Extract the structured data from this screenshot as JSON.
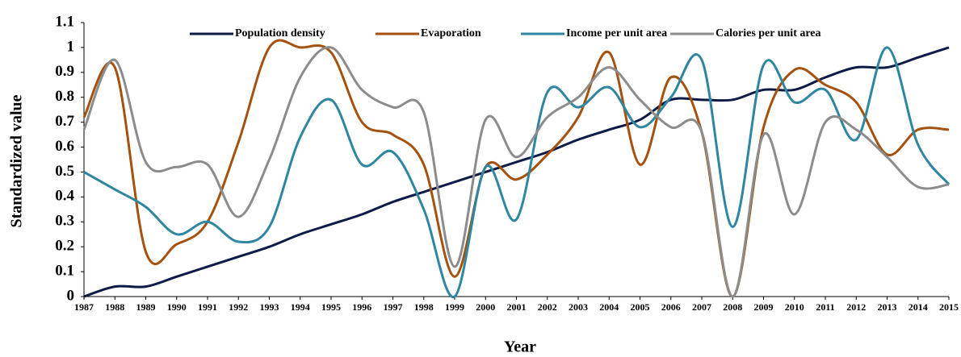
{
  "chart_data": {
    "type": "line",
    "x_label": "Year",
    "y_label": "Standardized value",
    "x": [
      1987,
      1988,
      1989,
      1990,
      1991,
      1992,
      1993,
      1994,
      1995,
      1996,
      1997,
      1998,
      1999,
      2000,
      2001,
      2002,
      2003,
      2004,
      2005,
      2006,
      2007,
      2008,
      2009,
      2010,
      2011,
      2012,
      2013,
      2014,
      2015
    ],
    "xlim": [
      1987,
      2015
    ],
    "ylim": [
      0,
      1.1
    ],
    "yticks": [
      0,
      0.1,
      0.2,
      0.3,
      0.4,
      0.5,
      0.6,
      0.7,
      0.8,
      0.9,
      1,
      1.1
    ],
    "series": [
      {
        "name": "Population density",
        "color": "#0d1b46",
        "values": [
          0,
          0.04,
          0.04,
          0.08,
          0.12,
          0.16,
          0.2,
          0.25,
          0.29,
          0.33,
          0.38,
          0.42,
          0.46,
          0.5,
          0.54,
          0.58,
          0.63,
          0.67,
          0.71,
          0.79,
          0.79,
          0.79,
          0.83,
          0.83,
          0.88,
          0.92,
          0.92,
          0.96,
          1.0
        ]
      },
      {
        "name": "Evaporation",
        "color": "#a5510f",
        "values": [
          0.72,
          0.92,
          0.18,
          0.21,
          0.3,
          0.62,
          1.0,
          1.0,
          0.98,
          0.7,
          0.65,
          0.53,
          0.08,
          0.52,
          0.47,
          0.57,
          0.72,
          0.98,
          0.53,
          0.88,
          0.66,
          0,
          0.68,
          0.91,
          0.85,
          0.78,
          0.57,
          0.67,
          0.67
        ]
      },
      {
        "name": "Income per unit area",
        "color": "#2e86a0",
        "values": [
          0.5,
          0.43,
          0.36,
          0.25,
          0.3,
          0.22,
          0.28,
          0.64,
          0.79,
          0.53,
          0.58,
          0.35,
          0,
          0.52,
          0.31,
          0.82,
          0.76,
          0.84,
          0.68,
          0.8,
          0.95,
          0.28,
          0.93,
          0.78,
          0.83,
          0.63,
          1.0,
          0.61,
          0.45
        ]
      },
      {
        "name": "Calories per unit area",
        "color": "#8c8c8c",
        "values": [
          0.67,
          0.95,
          0.54,
          0.52,
          0.53,
          0.32,
          0.55,
          0.88,
          1.0,
          0.83,
          0.76,
          0.74,
          0.12,
          0.71,
          0.56,
          0.72,
          0.8,
          0.92,
          0.79,
          0.68,
          0.66,
          0,
          0.65,
          0.33,
          0.7,
          0.67,
          0.56,
          0.44,
          0.45
        ]
      }
    ]
  }
}
